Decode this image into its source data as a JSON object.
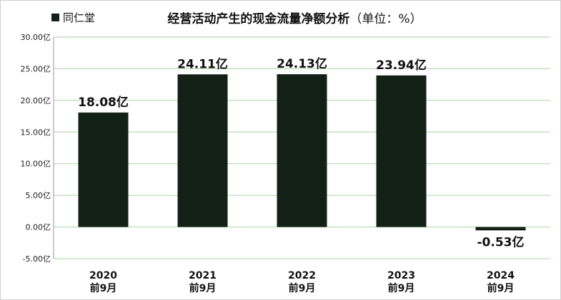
{
  "legend": {
    "label": "同仁堂",
    "swatch_color": "#132016"
  },
  "title": {
    "main": "经营活动产生的现金流量净额分析",
    "unit": "（单位：%）"
  },
  "chart_data": {
    "type": "bar",
    "title": "经营活动产生的现金流量净额分析（单位：%）",
    "categories": [
      [
        "2020",
        "前9月"
      ],
      [
        "2021",
        "前9月"
      ],
      [
        "2022",
        "前9月"
      ],
      [
        "2023",
        "前9月"
      ],
      [
        "2024",
        "前9月"
      ]
    ],
    "series": [
      {
        "name": "同仁堂",
        "values": [
          18.08,
          24.11,
          24.13,
          23.94,
          -0.53
        ],
        "color": "#132016"
      }
    ],
    "data_labels": [
      "18.08亿",
      "24.11亿",
      "24.13亿",
      "23.94亿",
      "-0.53亿"
    ],
    "y_ticks": [
      "30.00亿",
      "25.00亿",
      "20.00亿",
      "15.00亿",
      "10.00亿",
      "5.00亿",
      "0.00亿",
      "-5.00亿"
    ],
    "ylim": [
      -5,
      30
    ],
    "grid": true,
    "grid_color": "#a8d5a2",
    "legend_position": "top-left"
  }
}
